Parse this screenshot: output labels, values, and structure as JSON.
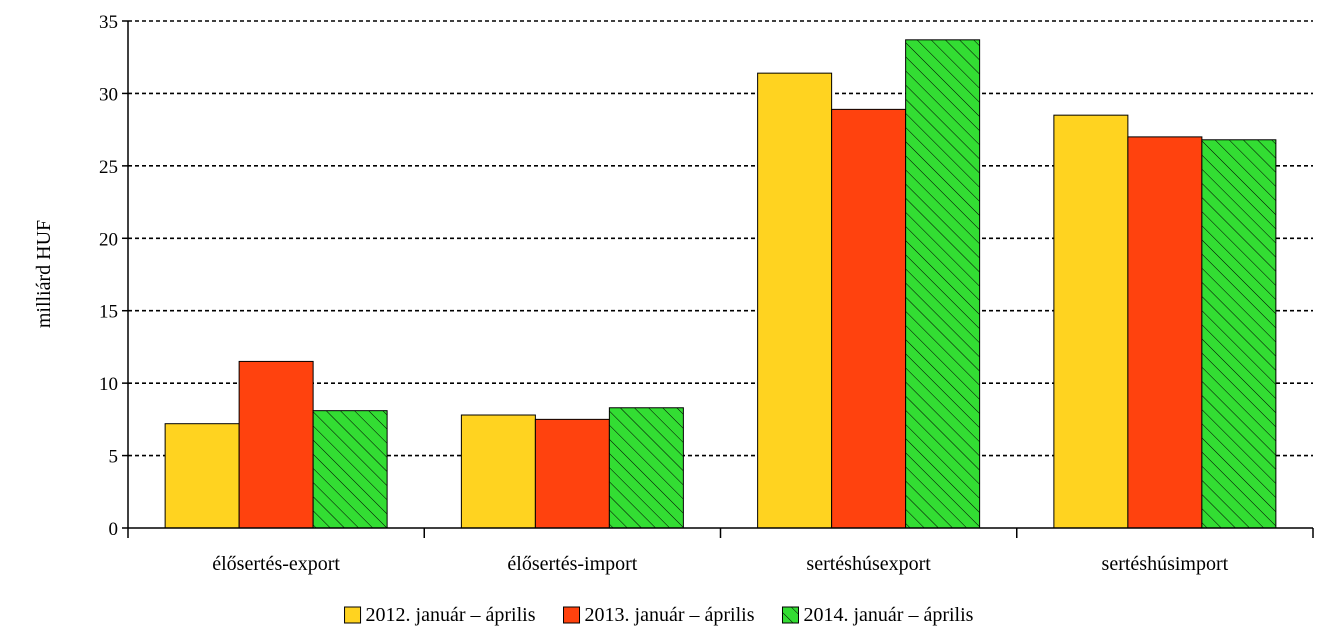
{
  "chart_data": {
    "type": "bar",
    "title": "",
    "xlabel": "",
    "ylabel": "milliárd HUF",
    "ylim": [
      0,
      35
    ],
    "yticks": [
      0,
      5,
      10,
      15,
      20,
      25,
      30,
      35
    ],
    "grid": true,
    "legend_position": "bottom",
    "categories": [
      "élősertés-export",
      "élősertés-import",
      "sertéshúsexport",
      "sertéshúsimport"
    ],
    "series": [
      {
        "name": "2012. január – április",
        "color": "#FFD320",
        "pattern": "solid",
        "values": [
          7.2,
          7.8,
          31.4,
          28.5
        ]
      },
      {
        "name": "2013. január – április",
        "color": "#FF420E",
        "pattern": "solid",
        "values": [
          11.5,
          7.5,
          28.9,
          27.0
        ]
      },
      {
        "name": "2014. január – április",
        "color": "#33DD33",
        "pattern": "diagonal-hatch",
        "values": [
          8.1,
          8.3,
          33.7,
          26.8
        ]
      }
    ]
  }
}
